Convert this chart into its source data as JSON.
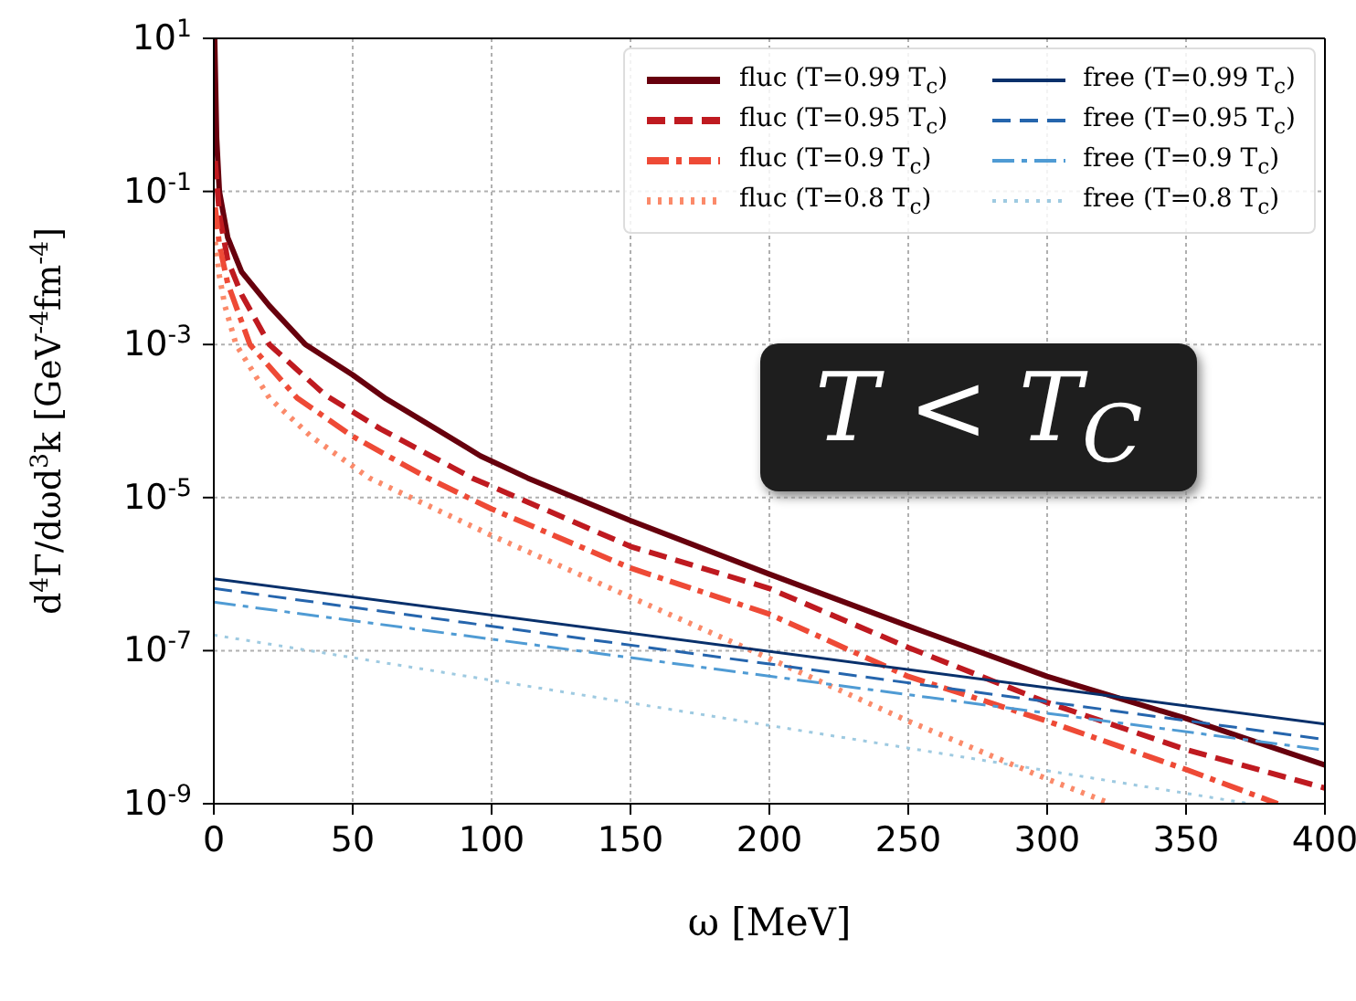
{
  "chart_data": {
    "type": "line",
    "xlabel": "ω [MeV]",
    "ylabel": "d$^{4}$Γ/dωd$^{3}$k [GeV$^{-4}$fm$^{-4}$]",
    "xlim": [
      0,
      400
    ],
    "xticks": [
      0,
      50,
      100,
      150,
      200,
      250,
      300,
      350,
      400
    ],
    "ylim": [
      1e-09,
      10
    ],
    "yticks": [
      {
        "value": 10,
        "label": "10$^{1}$"
      },
      {
        "value": 0.1,
        "label": "10$^{-1}$"
      },
      {
        "value": 0.001,
        "label": "10$^{-3}$"
      },
      {
        "value": 1e-05,
        "label": "10$^{-5}$"
      },
      {
        "value": 1e-07,
        "label": "10$^{-7}$"
      },
      {
        "value": 1e-09,
        "label": "10$^{-9}$"
      }
    ],
    "log": "y",
    "grid": true,
    "legend": "top right",
    "marker": "none",
    "annotations": [
      "T < T$_{C}$"
    ],
    "series": [
      {
        "name": "fluc (T=0.99 T$_{c}$)",
        "color": "#67000d",
        "line_style": "solid",
        "x": [
          0.3,
          1,
          2,
          5,
          10,
          20,
          33,
          50,
          62,
          80,
          96,
          113,
          150,
          200,
          250,
          300,
          350,
          400
        ],
        "values": [
          10,
          0.5,
          0.1,
          0.025,
          0.0089,
          0.0032,
          0.001,
          0.0004,
          0.000195,
          7.9e-05,
          3.5e-05,
          1.8e-05,
          5e-06,
          1e-06,
          2.1e-07,
          4.6e-08,
          1.3e-08,
          3.2e-09
        ]
      },
      {
        "name": "fluc (T=0.95 T$_{c}$)",
        "color": "#bf1a20",
        "line_style": "dashed",
        "x": [
          0.5,
          2,
          5,
          10,
          20,
          40,
          60,
          93,
          150,
          200,
          250,
          300,
          350,
          400
        ],
        "values": [
          0.25,
          0.05,
          0.0126,
          0.0045,
          0.001,
          0.00022,
          7.9e-05,
          1.8e-05,
          2.3e-06,
          6.5e-07,
          1.1e-07,
          2.1e-08,
          5.1e-09,
          1.6e-09
        ]
      },
      {
        "name": "fluc (T=0.9 T$_{c}$)",
        "color": "#ee4a36",
        "line_style": "dashdot",
        "x": [
          0.5,
          2,
          5,
          13,
          30,
          50,
          77,
          100,
          150,
          200,
          250,
          300,
          350,
          383
        ],
        "values": [
          0.062,
          0.02,
          0.0063,
          0.001,
          0.0002,
          6.3e-05,
          1.8e-05,
          7.1e-06,
          1.2e-06,
          3e-07,
          4.6e-08,
          1.2e-08,
          2.8e-09,
          1e-09
        ]
      },
      {
        "name": "fluc (T=0.8 T$_{c}$)",
        "color": "#fb8a6a",
        "line_style": "dotted",
        "x": [
          0.5,
          2,
          4,
          8,
          20,
          35,
          56,
          100,
          150,
          200,
          250,
          300,
          323
        ],
        "values": [
          0.022,
          0.0079,
          0.0032,
          0.001,
          0.0002,
          6.3e-05,
          1.8e-05,
          3.2e-06,
          5e-07,
          7.9e-08,
          1.2e-08,
          2.1e-09,
          1e-09
        ]
      },
      {
        "name": "free (T=0.99 T$_{c}$)",
        "color": "#08306b",
        "line_style": "solid",
        "x": [
          0,
          400
        ],
        "values": [
          8.7e-07,
          1.1e-08
        ]
      },
      {
        "name": "free (T=0.95 T$_{c}$)",
        "color": "#2565ad",
        "line_style": "dashed",
        "x": [
          0,
          400
        ],
        "values": [
          6.5e-07,
          6.9e-09
        ]
      },
      {
        "name": "free (T=0.9 T$_{c}$)",
        "color": "#4f9bd4",
        "line_style": "dashdot",
        "x": [
          0,
          400
        ],
        "values": [
          4.3e-07,
          5e-09
        ]
      },
      {
        "name": "free (T=0.8 T$_{c}$)",
        "color": "#9ecae1",
        "line_style": "dotted",
        "x": [
          0,
          373
        ],
        "values": [
          1.6e-07,
          1e-09
        ]
      }
    ]
  }
}
